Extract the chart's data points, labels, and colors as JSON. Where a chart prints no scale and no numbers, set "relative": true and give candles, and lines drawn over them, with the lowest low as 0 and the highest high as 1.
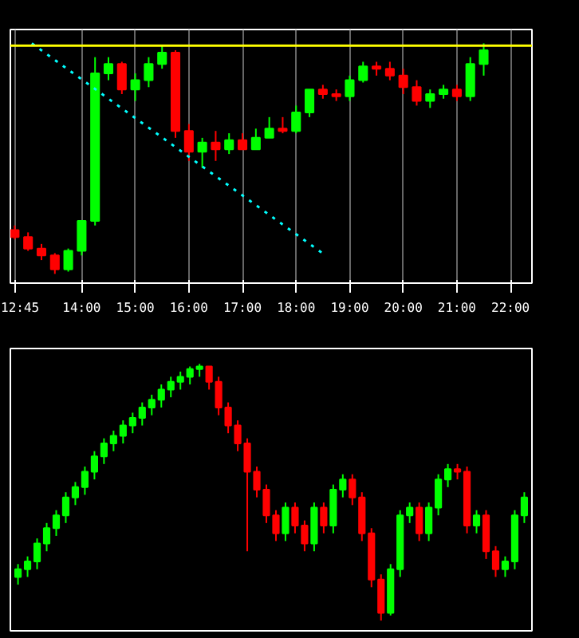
{
  "chart_data": [
    {
      "type": "candlestick",
      "relative": true,
      "x": [
        12.75,
        13.0,
        13.25,
        13.5,
        13.75,
        14.0,
        14.25,
        14.5,
        14.75,
        15.0,
        15.25,
        15.5,
        15.75,
        16.0,
        16.25,
        16.5,
        16.75,
        17.0,
        17.25,
        17.5,
        17.75,
        18.0,
        18.25,
        18.5,
        18.75,
        19.0,
        19.25,
        19.5,
        19.75,
        20.0,
        20.25,
        20.5,
        20.75,
        21.0,
        21.25,
        21.5
      ],
      "ohlc": [
        [
          0.19,
          0.21,
          0.15,
          0.16
        ],
        [
          0.16,
          0.18,
          0.1,
          0.11
        ],
        [
          0.11,
          0.13,
          0.06,
          0.08
        ],
        [
          0.08,
          0.09,
          0.0,
          0.02
        ],
        [
          0.02,
          0.11,
          0.01,
          0.1
        ],
        [
          0.1,
          0.23,
          0.08,
          0.23
        ],
        [
          0.23,
          0.94,
          0.21,
          0.87
        ],
        [
          0.87,
          0.94,
          0.84,
          0.91
        ],
        [
          0.91,
          0.92,
          0.78,
          0.8
        ],
        [
          0.8,
          0.87,
          0.75,
          0.84
        ],
        [
          0.84,
          0.94,
          0.81,
          0.91
        ],
        [
          0.91,
          0.99,
          0.89,
          0.96
        ],
        [
          0.96,
          0.97,
          0.59,
          0.62
        ],
        [
          0.62,
          0.65,
          0.49,
          0.53
        ],
        [
          0.53,
          0.59,
          0.46,
          0.57
        ],
        [
          0.57,
          0.62,
          0.49,
          0.54
        ],
        [
          0.54,
          0.61,
          0.52,
          0.58
        ],
        [
          0.58,
          0.61,
          0.54,
          0.54
        ],
        [
          0.54,
          0.63,
          0.54,
          0.59
        ],
        [
          0.59,
          0.68,
          0.59,
          0.63
        ],
        [
          0.63,
          0.68,
          0.61,
          0.62
        ],
        [
          0.62,
          0.73,
          0.61,
          0.7
        ],
        [
          0.7,
          0.8,
          0.68,
          0.8
        ],
        [
          0.8,
          0.82,
          0.76,
          0.78
        ],
        [
          0.78,
          0.8,
          0.75,
          0.77
        ],
        [
          0.77,
          0.86,
          0.75,
          0.84
        ],
        [
          0.84,
          0.92,
          0.83,
          0.9
        ],
        [
          0.9,
          0.92,
          0.86,
          0.89
        ],
        [
          0.89,
          0.92,
          0.84,
          0.86
        ],
        [
          0.86,
          0.89,
          0.78,
          0.81
        ],
        [
          0.81,
          0.84,
          0.73,
          0.75
        ],
        [
          0.75,
          0.8,
          0.72,
          0.78
        ],
        [
          0.78,
          0.82,
          0.76,
          0.8
        ],
        [
          0.8,
          0.82,
          0.75,
          0.77
        ],
        [
          0.77,
          0.94,
          0.75,
          0.91
        ],
        [
          0.91,
          1.0,
          0.86,
          0.97
        ]
      ],
      "xlim": [
        12.67,
        22.4
      ],
      "xticks": [
        {
          "value": 12.75,
          "label": "12:45"
        },
        {
          "value": 14,
          "label": "14:00"
        },
        {
          "value": 15,
          "label": "15:00"
        },
        {
          "value": 16,
          "label": "16:00"
        },
        {
          "value": 17,
          "label": "17:00"
        },
        {
          "value": 18,
          "label": "18:00"
        },
        {
          "value": 19,
          "label": "19:00"
        },
        {
          "value": 20,
          "label": "20:00"
        },
        {
          "value": 21,
          "label": "21:00"
        },
        {
          "value": 22,
          "label": "22:00"
        }
      ],
      "tick_labels": "x",
      "grid": "x",
      "series": [
        {
          "type": "line",
          "x": [
            13.07,
            18.55
          ],
          "values": [
            1.0,
            0.08
          ],
          "color": "#00ffff",
          "line_style": "dotted"
        }
      ],
      "ref_lines": [
        {
          "axis": "y",
          "value": 0.99,
          "color": "#ffff00"
        }
      ]
    },
    {
      "type": "candlestick",
      "relative": true,
      "categories": [
        null,
        null,
        null,
        null,
        null,
        null,
        null,
        null,
        null,
        null,
        null,
        null,
        null,
        null,
        null,
        null,
        null,
        null,
        null,
        null,
        null,
        null,
        null,
        null,
        null,
        null,
        null,
        null,
        null,
        null,
        null,
        null,
        null,
        null,
        null,
        null,
        null,
        null,
        null,
        null,
        null,
        null,
        null,
        null,
        null,
        null,
        null,
        null,
        null,
        null,
        null,
        null,
        null,
        null
      ],
      "ohlc": [
        [
          0.17,
          0.22,
          0.14,
          0.2
        ],
        [
          0.2,
          0.25,
          0.17,
          0.23
        ],
        [
          0.23,
          0.32,
          0.2,
          0.3
        ],
        [
          0.3,
          0.38,
          0.27,
          0.36
        ],
        [
          0.36,
          0.43,
          0.33,
          0.41
        ],
        [
          0.41,
          0.5,
          0.38,
          0.48
        ],
        [
          0.48,
          0.54,
          0.45,
          0.52
        ],
        [
          0.52,
          0.6,
          0.49,
          0.58
        ],
        [
          0.58,
          0.66,
          0.55,
          0.64
        ],
        [
          0.64,
          0.71,
          0.61,
          0.69
        ],
        [
          0.69,
          0.74,
          0.66,
          0.72
        ],
        [
          0.72,
          0.78,
          0.69,
          0.76
        ],
        [
          0.76,
          0.81,
          0.73,
          0.79
        ],
        [
          0.79,
          0.85,
          0.76,
          0.83
        ],
        [
          0.83,
          0.88,
          0.8,
          0.86
        ],
        [
          0.86,
          0.92,
          0.83,
          0.9
        ],
        [
          0.9,
          0.95,
          0.87,
          0.93
        ],
        [
          0.93,
          0.97,
          0.9,
          0.95
        ],
        [
          0.95,
          0.99,
          0.92,
          0.98
        ],
        [
          0.98,
          1.0,
          0.95,
          0.99
        ],
        [
          0.99,
          0.99,
          0.9,
          0.93
        ],
        [
          0.93,
          0.95,
          0.8,
          0.83
        ],
        [
          0.83,
          0.85,
          0.73,
          0.76
        ],
        [
          0.76,
          0.78,
          0.66,
          0.69
        ],
        [
          0.69,
          0.71,
          0.27,
          0.58
        ],
        [
          0.58,
          0.6,
          0.48,
          0.51
        ],
        [
          0.51,
          0.53,
          0.38,
          0.41
        ],
        [
          0.41,
          0.43,
          0.31,
          0.34
        ],
        [
          0.34,
          0.46,
          0.31,
          0.44
        ],
        [
          0.44,
          0.46,
          0.34,
          0.37
        ],
        [
          0.37,
          0.39,
          0.27,
          0.3
        ],
        [
          0.3,
          0.46,
          0.27,
          0.44
        ],
        [
          0.44,
          0.46,
          0.34,
          0.37
        ],
        [
          0.37,
          0.53,
          0.34,
          0.51
        ],
        [
          0.51,
          0.57,
          0.48,
          0.55
        ],
        [
          0.55,
          0.57,
          0.45,
          0.48
        ],
        [
          0.48,
          0.5,
          0.31,
          0.34
        ],
        [
          0.34,
          0.36,
          0.13,
          0.16
        ],
        [
          0.16,
          0.18,
          0.0,
          0.03
        ],
        [
          0.03,
          0.22,
          0.02,
          0.2
        ],
        [
          0.2,
          0.43,
          0.17,
          0.41
        ],
        [
          0.41,
          0.46,
          0.38,
          0.44
        ],
        [
          0.44,
          0.46,
          0.31,
          0.34
        ],
        [
          0.34,
          0.46,
          0.31,
          0.44
        ],
        [
          0.44,
          0.57,
          0.41,
          0.55
        ],
        [
          0.55,
          0.61,
          0.52,
          0.59
        ],
        [
          0.59,
          0.61,
          0.55,
          0.58
        ],
        [
          0.58,
          0.6,
          0.34,
          0.37
        ],
        [
          0.37,
          0.43,
          0.34,
          0.41
        ],
        [
          0.41,
          0.43,
          0.24,
          0.27
        ],
        [
          0.27,
          0.29,
          0.17,
          0.2
        ],
        [
          0.2,
          0.25,
          0.17,
          0.23
        ],
        [
          0.23,
          0.43,
          0.2,
          0.41
        ],
        [
          0.41,
          0.5,
          0.38,
          0.48
        ]
      ],
      "tick_labels": false
    }
  ]
}
